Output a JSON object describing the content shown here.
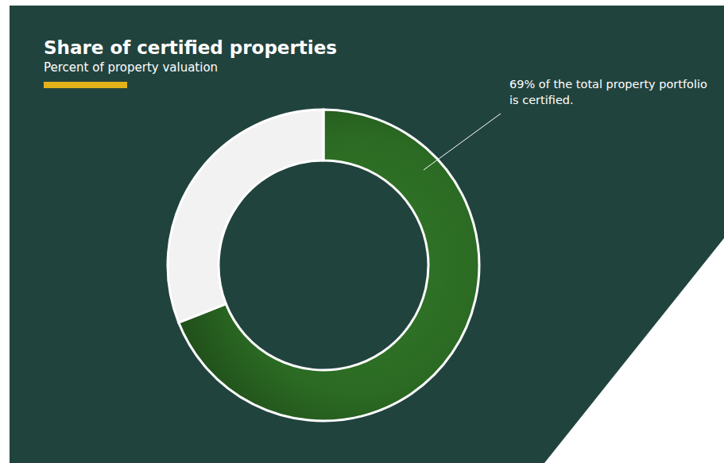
{
  "chart_data": {
    "type": "pie",
    "title": "Share of certified properties",
    "subtitle": "Percent of property valuation",
    "annotation": [
      "69% of the total property portfolio",
      "is certified."
    ],
    "values": [
      69,
      31
    ],
    "colors": [
      "#2b6a23",
      "#f2f2f2"
    ]
  }
}
